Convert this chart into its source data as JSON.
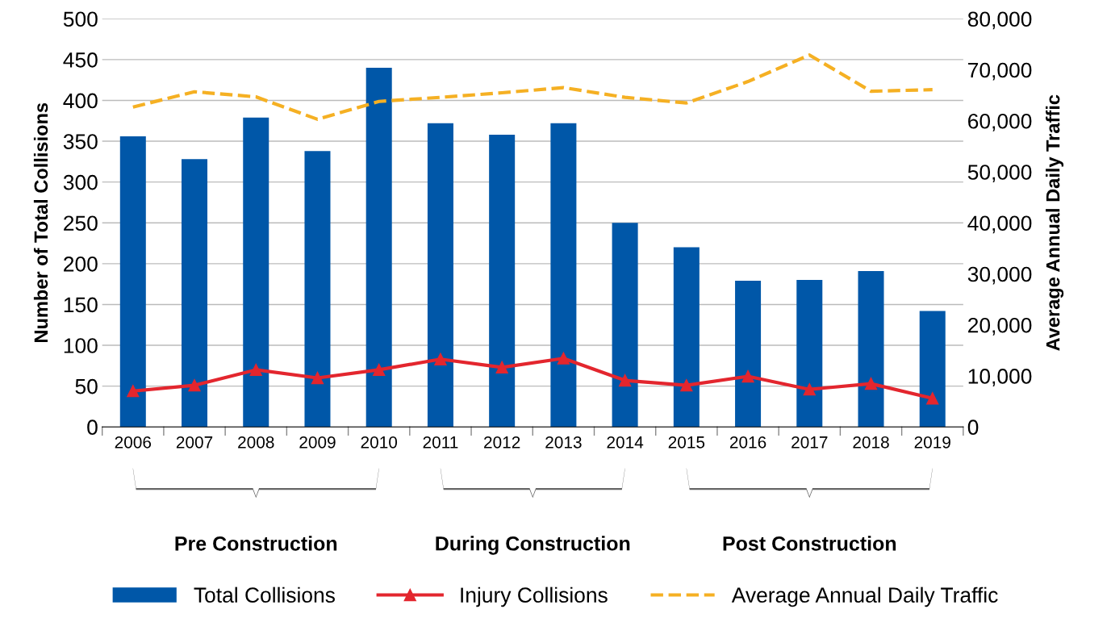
{
  "chart_data": {
    "type": "bar",
    "ylabel": "Number of Total Collisions",
    "y2label": "Average Annual Daily Traffic",
    "categories": [
      "2006",
      "2007",
      "2008",
      "2009",
      "2010",
      "2011",
      "2012",
      "2013",
      "2014",
      "2015",
      "2016",
      "2017",
      "2018",
      "2019"
    ],
    "series": [
      {
        "name": "Total Collisions",
        "color": "#0057a8",
        "values": [
          356,
          328,
          379,
          338,
          440,
          372,
          358,
          372,
          250,
          220,
          179,
          180,
          191,
          142
        ]
      },
      {
        "name": "Injury Collisions",
        "type": "line",
        "color": "#e3262e",
        "marker": "triangle",
        "line_style": "solid",
        "values": [
          44,
          51,
          70,
          60,
          70,
          83,
          73,
          84,
          57,
          51,
          62,
          46,
          53,
          35
        ]
      },
      {
        "name": "Average Annual Daily Traffic",
        "type": "line",
        "axis": "y2",
        "color": "#f5b023",
        "marker": "none",
        "line_style": "dashed",
        "values": [
          62700,
          65700,
          64700,
          60300,
          63800,
          64600,
          65500,
          66500,
          64600,
          63500,
          67700,
          72900,
          65800,
          66100
        ]
      }
    ],
    "ylim": [
      0,
      500
    ],
    "yticks": [
      0,
      50,
      100,
      150,
      200,
      250,
      300,
      350,
      400,
      450,
      500
    ],
    "y2lim": [
      0,
      80000
    ],
    "y2ticks": [
      {
        "value": 0,
        "label": "0"
      },
      {
        "value": 10000,
        "label": "10,000"
      },
      {
        "value": 20000,
        "label": "20,000"
      },
      {
        "value": 30000,
        "label": "30,000"
      },
      {
        "value": 40000,
        "label": "40,000"
      },
      {
        "value": 50000,
        "label": "50,000"
      },
      {
        "value": 60000,
        "label": "60,000"
      },
      {
        "value": 70000,
        "label": "70,000"
      },
      {
        "value": 80000,
        "label": "80,000"
      }
    ],
    "annotations": [
      "Pre Construction",
      "During Construction",
      "Post Construction"
    ],
    "grid": "y",
    "legend": "bottom"
  }
}
